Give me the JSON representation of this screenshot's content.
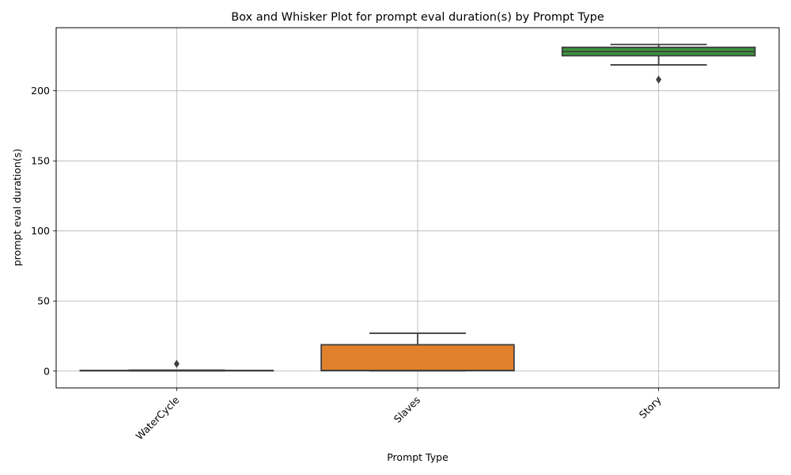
{
  "chart_data": {
    "type": "box",
    "title": "Box and Whisker Plot for prompt eval duration(s) by Prompt Type",
    "xlabel": "Prompt Type",
    "ylabel": "prompt eval duration(s)",
    "ylim": [
      -12,
      245
    ],
    "yticks": [
      0,
      50,
      100,
      150,
      200
    ],
    "grid": true,
    "categories": [
      "WaterCycle",
      "Slaves",
      "Story"
    ],
    "boxes": [
      {
        "category": "WaterCycle",
        "color": "#3a75ae",
        "whisker_low": 0.2,
        "q1": 0.3,
        "median": 0.4,
        "q3": 0.5,
        "whisker_high": 0.7,
        "outliers": [
          5.2
        ]
      },
      {
        "category": "Slaves",
        "color": "#e1812c",
        "whisker_low": 0.2,
        "q1": 0.3,
        "median": 0.5,
        "q3": 18.8,
        "whisker_high": 27,
        "outliers": []
      },
      {
        "category": "Story",
        "color": "#3a923a",
        "whisker_low": 218.5,
        "q1": 225,
        "median": 228,
        "q3": 231,
        "whisker_high": 233,
        "outliers": [
          208
        ]
      }
    ]
  }
}
